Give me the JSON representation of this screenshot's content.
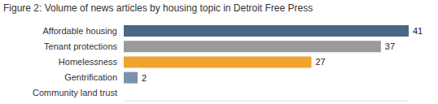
{
  "chart_data": {
    "type": "bar",
    "title": "Figure 2: Volume of news articles by housing topic in Detroit Free Press",
    "orientation": "horizontal",
    "categories": [
      "Affordable housing",
      "Tenant protections",
      "Homelessness",
      "Gentrification",
      "Community land trust"
    ],
    "values": [
      41,
      37,
      27,
      2,
      0
    ],
    "colors": [
      "#4b6786",
      "#9a9a9a",
      "#f0a42c",
      "#7a93ac",
      "#7a93ac"
    ],
    "xlim": [
      0,
      41
    ],
    "data_labels": true,
    "tick_labels": "y",
    "grid": false
  }
}
